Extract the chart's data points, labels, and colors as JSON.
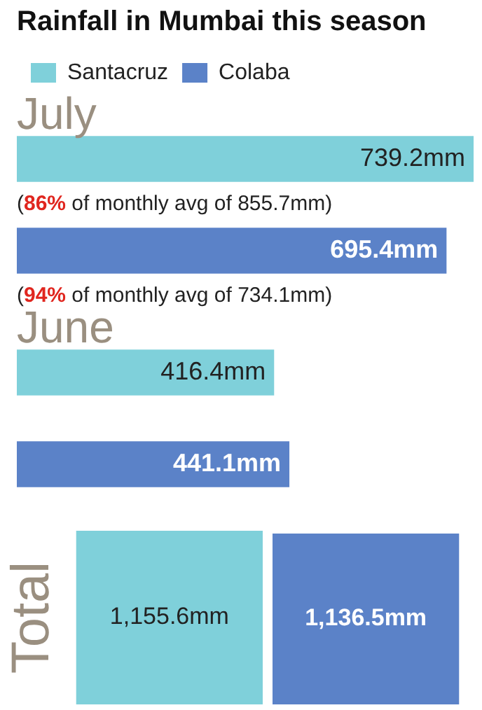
{
  "chart_data": [
    {
      "type": "bar",
      "orientation": "horizontal",
      "title": "Rainfall in Mumbai this season",
      "categories": [
        "July",
        "June"
      ],
      "series": [
        {
          "name": "Santacruz",
          "color": "#7fd0da",
          "values": [
            739.2,
            416.4
          ],
          "value_labels": [
            "739.2mm",
            "416.4mm"
          ]
        },
        {
          "name": "Colaba",
          "color": "#5b82c8",
          "values": [
            695.4,
            441.1
          ],
          "value_labels": [
            "695.4mm",
            "441.1mm"
          ]
        }
      ],
      "annotations": [
        "(86% of monthly avg of 855.7mm)",
        "(94% of monthly avg of 734.1mm)"
      ],
      "legend": "top left",
      "tick_labels": "y"
    },
    {
      "type": "bar",
      "categories": [
        null
      ],
      "ylabel": "Total",
      "series": [
        {
          "color": "#7fd0da",
          "values": [
            1155.6
          ],
          "value_labels": [
            "1,155.6mm"
          ]
        },
        {
          "color": "#5b82c8",
          "values": [
            1136.5
          ],
          "value_labels": [
            "1,136.5mm"
          ]
        }
      ],
      "legend": false,
      "tick_labels": false
    }
  ]
}
